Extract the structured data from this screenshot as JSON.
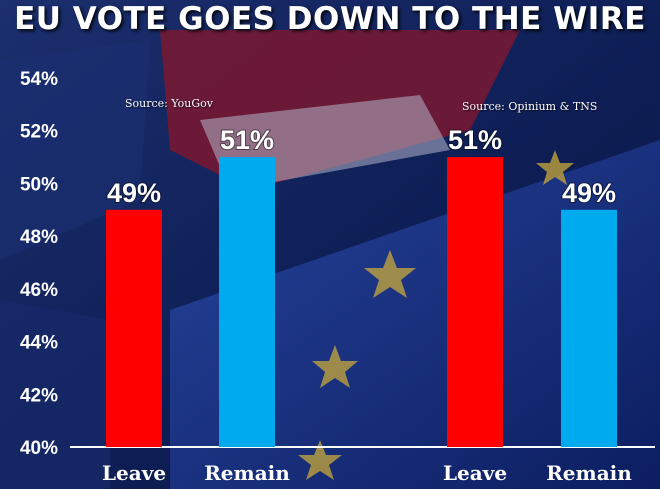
{
  "title": "EU VOTE GOES DOWN TO THE WIRE",
  "colors": {
    "leave": "#ff0000",
    "remain": "#00aaee",
    "background": "#12245e"
  },
  "chart_data": [
    {
      "type": "bar",
      "source": "Source: YouGov",
      "categories": [
        "Leave",
        "Remain"
      ],
      "values": [
        49,
        51
      ],
      "value_labels": [
        "49%",
        "51%"
      ],
      "ylim": [
        40,
        54
      ],
      "yticks": [
        "40%",
        "42%",
        "44%",
        "46%",
        "48%",
        "50%",
        "52%",
        "54%"
      ],
      "grid": false,
      "legend": "none"
    },
    {
      "type": "bar",
      "source": "Source: Opinium & TNS",
      "categories": [
        "Leave",
        "Remain"
      ],
      "values": [
        51,
        49
      ],
      "value_labels": [
        "51%",
        "49%"
      ],
      "ylim": [
        40,
        54
      ],
      "grid": false,
      "legend": "none"
    }
  ]
}
